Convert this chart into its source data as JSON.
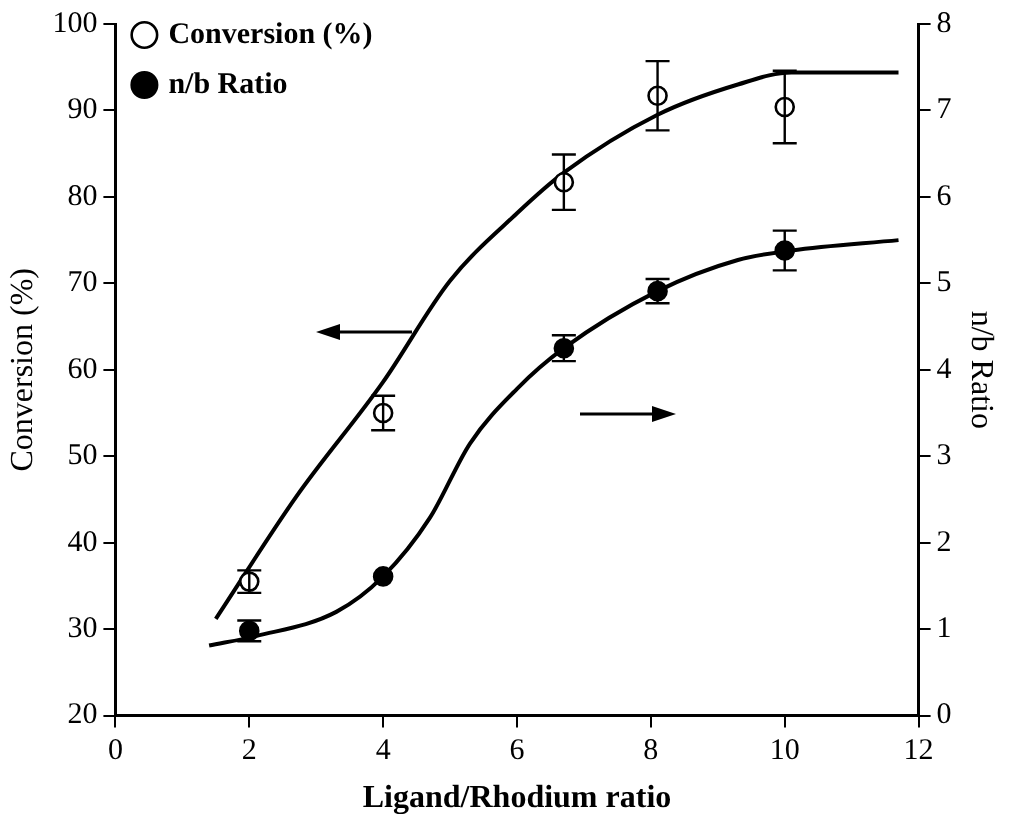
{
  "chart_data": {
    "type": "scatter",
    "xlabel": "Ligand/Rhodium ratio",
    "ylabel": "Conversion (%)",
    "y2label": "n/b Ratio",
    "xlim": [
      0,
      12
    ],
    "xticks": [
      0,
      2,
      4,
      6,
      8,
      10,
      12
    ],
    "ylim": [
      20,
      100
    ],
    "yticks": [
      20,
      30,
      40,
      50,
      60,
      70,
      80,
      90,
      100
    ],
    "y2lim": [
      0,
      8
    ],
    "y2ticks": [
      0,
      1,
      2,
      3,
      4,
      5,
      6,
      7,
      8
    ],
    "grid": false,
    "legend": "top left",
    "marker": "circle",
    "series": [
      {
        "name": "Conversion (%)",
        "color": "#ffffff",
        "x": [
          2,
          4,
          6.7,
          8.1,
          10
        ],
        "values": [
          35.5,
          55,
          81.7,
          91.7,
          90.4
        ],
        "errors": [
          1.3,
          2,
          3.2,
          4,
          4.2
        ]
      },
      {
        "name": "n/b Ratio",
        "color": "#000000",
        "axis": "y2",
        "x": [
          2,
          4,
          6.7,
          8.1,
          10
        ],
        "values": [
          0.98,
          1.61,
          4.25,
          4.91,
          5.38
        ],
        "errors": [
          0.12,
          null,
          0.15,
          0.14,
          0.23
        ]
      },
      {
        "type": "line",
        "color": "#000000",
        "marker": "none",
        "x": [
          1.5,
          2.7,
          4,
          5,
          6,
          6.7,
          8.1,
          9.3,
          10.1,
          11.7
        ],
        "values": [
          31.2,
          45.3,
          58.6,
          70.3,
          78.1,
          82.8,
          89.5,
          93,
          94.4,
          94.4
        ]
      },
      {
        "type": "line",
        "color": "#000000",
        "marker": "none",
        "axis": "y2",
        "x": [
          1.4,
          2.1,
          3.3,
          4,
          4.7,
          5.3,
          6,
          6.7,
          8.1,
          9.3,
          10.1,
          11.7
        ],
        "values": [
          0.81,
          0.92,
          1.2,
          1.61,
          2.29,
          3.15,
          3.78,
          4.25,
          4.91,
          5.27,
          5.38,
          5.5
        ]
      }
    ]
  }
}
